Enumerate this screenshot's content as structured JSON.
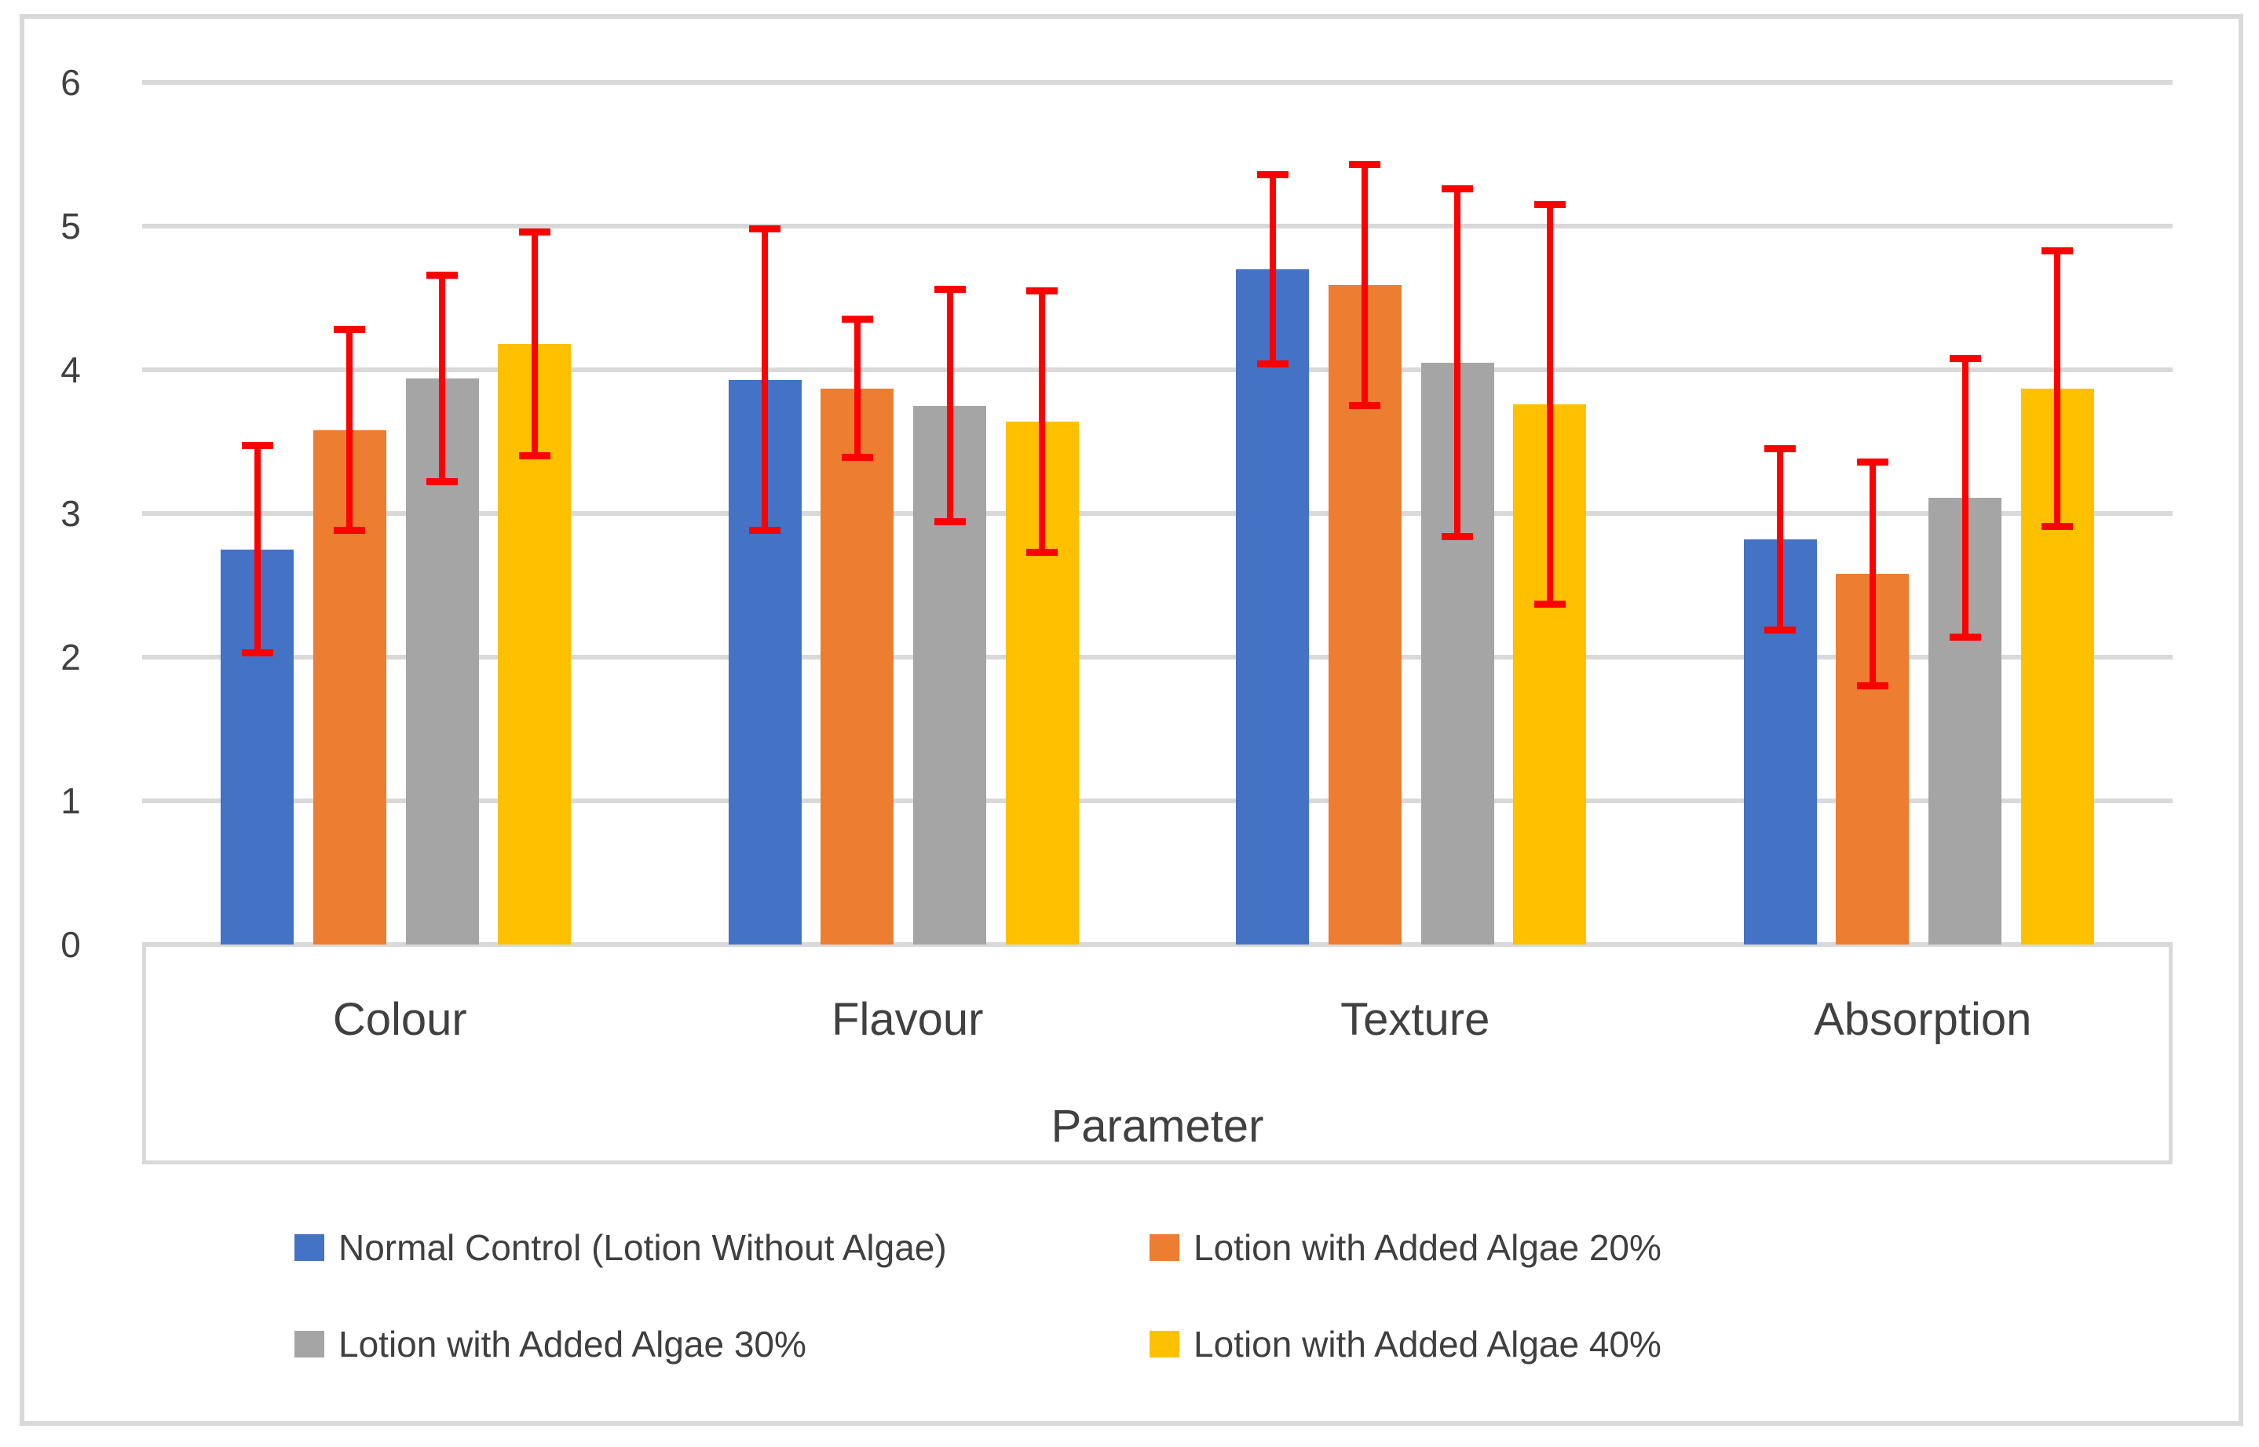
{
  "chart_data": {
    "type": "bar",
    "title": "",
    "categories": [
      "Colour",
      "Flavour",
      "Texture",
      "Absorption"
    ],
    "xlabel": "Parameter",
    "ylabel": "",
    "ylim": [
      0,
      6
    ],
    "yticks": [
      0,
      1,
      2,
      3,
      4,
      5,
      6
    ],
    "grid": true,
    "legend_position": "bottom",
    "error_bars": true,
    "error_bar_color": "#FF0000",
    "series": [
      {
        "name": "Normal Control (Lotion Without Algae)",
        "color": "#4472C4",
        "values": [
          2.75,
          3.93,
          4.7,
          2.82
        ],
        "errors": [
          0.72,
          1.05,
          0.66,
          0.63
        ]
      },
      {
        "name": "Lotion with Added Algae 20%",
        "color": "#ED7D31",
        "values": [
          3.58,
          3.87,
          4.59,
          2.58
        ],
        "errors": [
          0.7,
          0.48,
          0.84,
          0.78
        ]
      },
      {
        "name": "Lotion with Added Algae 30%",
        "color": "#A5A5A5",
        "values": [
          3.94,
          3.75,
          4.05,
          3.11
        ],
        "errors": [
          0.72,
          0.81,
          1.21,
          0.97
        ]
      },
      {
        "name": "Lotion with Added Algae 40%",
        "color": "#FFC000",
        "values": [
          4.18,
          3.64,
          3.76,
          3.87
        ],
        "errors": [
          0.78,
          0.91,
          1.39,
          0.96
        ]
      }
    ]
  },
  "colors": {
    "gridline": "#D9D9D9",
    "frame_border": "#D9D9D9",
    "tick_text": "#404040",
    "legend_text": "#3f3f3f",
    "background": "#ffffff"
  }
}
